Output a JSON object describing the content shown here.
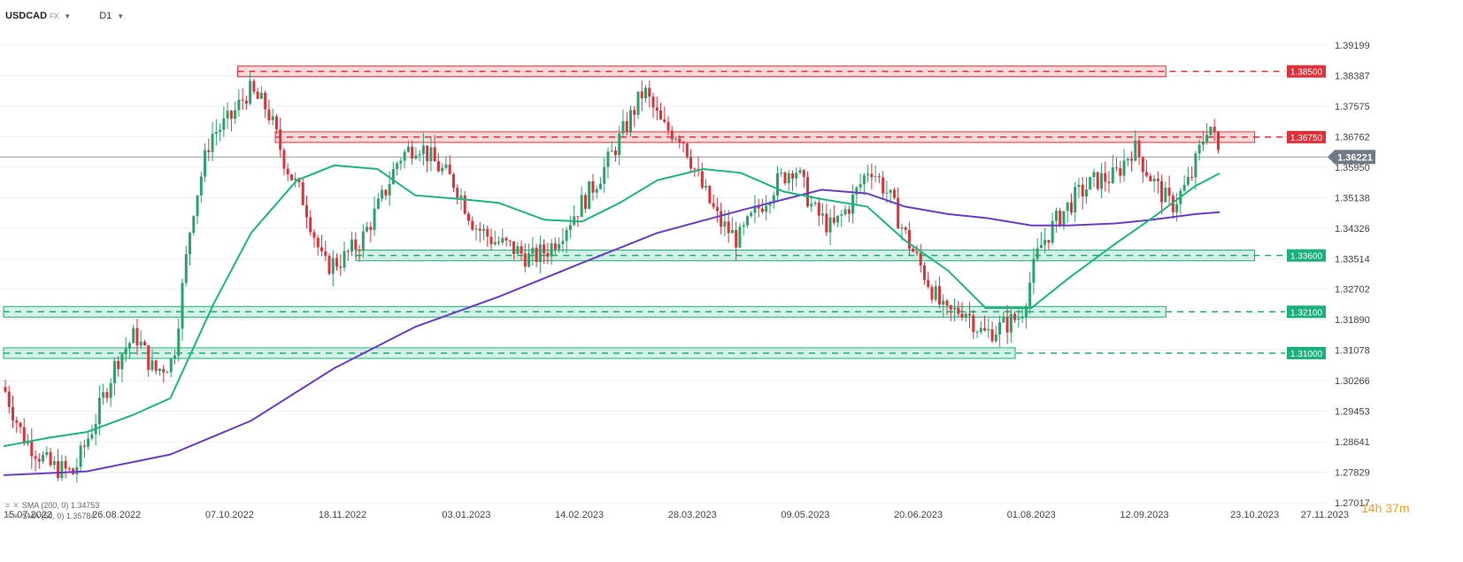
{
  "header": {
    "symbol": "USDCAD",
    "symbol_type": "FX",
    "timeframe": "D1",
    "caret_icon": "chevron-down-icon"
  },
  "timer": {
    "hours": "14h",
    "minutes": "37m"
  },
  "colors": {
    "bull": "#2aa36a",
    "bear": "#e0303a",
    "sma50": "#19b77d",
    "sma200": "#6a3cc8",
    "resistance": "#e0303a",
    "support": "#1ab07a",
    "grid": "#eeeeee",
    "axis_text": "#444444",
    "current_price_bg": "#6f7a86"
  },
  "indicators": [
    {
      "label": "SMA (200, 0) 1.34753",
      "color": "#6a3cc8"
    },
    {
      "label": "SMA (50, 0) 1.35784",
      "color": "#19b77d"
    }
  ],
  "chart_data": {
    "type": "candlestick",
    "instrument": "USDCAD",
    "timeframe": "D1",
    "x_tick_labels": [
      "15.07.2022",
      "26.08.2022",
      "07.10.2022",
      "18.11.2022",
      "03.01.2023",
      "14.02.2023",
      "28.03.2023",
      "09.05.2023",
      "20.06.2023",
      "01.08.2023",
      "12.09.2023",
      "23.10.2023",
      "27.11.2023"
    ],
    "x_range": [
      "15.07.2022",
      "27.11.2023"
    ],
    "y_tick_labels": [
      "1.39199",
      "1.38387",
      "1.37575",
      "1.36762",
      "1.35950",
      "1.35138",
      "1.34326",
      "1.33514",
      "1.32702",
      "1.31890",
      "1.31078",
      "1.30266",
      "1.29453",
      "1.28641",
      "1.27829",
      "1.27017"
    ],
    "ylim": [
      1.27017,
      1.39199
    ],
    "current_price": 1.36221,
    "levels": [
      {
        "value": "1.38500",
        "type": "resistance",
        "start": "10.10.2022",
        "end": "20.09.2023"
      },
      {
        "value": "1.36750",
        "type": "resistance",
        "start": "24.10.2022",
        "end": "23.10.2023"
      },
      {
        "value": "1.33600",
        "type": "support",
        "start": "23.11.2022",
        "end": "23.10.2023"
      },
      {
        "value": "1.32100",
        "type": "support",
        "start": "15.07.2022",
        "end": "20.09.2023"
      },
      {
        "value": "1.31000",
        "type": "support",
        "start": "15.07.2022",
        "end": "26.07.2023"
      }
    ],
    "sma50": {
      "name": "SMA (50, 0)",
      "last": 1.35784,
      "points": [
        [
          "15.07.2022",
          1.2852
        ],
        [
          "01.08.2022",
          1.2875
        ],
        [
          "15.08.2022",
          1.289
        ],
        [
          "01.09.2022",
          1.2935
        ],
        [
          "15.09.2022",
          1.298
        ],
        [
          "01.10.2022",
          1.323
        ],
        [
          "15.10.2022",
          1.342
        ],
        [
          "01.11.2022",
          1.356
        ],
        [
          "15.11.2022",
          1.36
        ],
        [
          "01.12.2022",
          1.359
        ],
        [
          "15.12.2022",
          1.352
        ],
        [
          "01.01.2023",
          1.351
        ],
        [
          "15.01.2023",
          1.35
        ],
        [
          "01.02.2023",
          1.3455
        ],
        [
          "15.02.2023",
          1.345
        ],
        [
          "01.03.2023",
          1.35
        ],
        [
          "15.03.2023",
          1.356
        ],
        [
          "01.04.2023",
          1.359
        ],
        [
          "15.04.2023",
          1.358
        ],
        [
          "01.05.2023",
          1.353
        ],
        [
          "15.05.2023",
          1.351
        ],
        [
          "01.06.2023",
          1.349
        ],
        [
          "15.06.2023",
          1.34
        ],
        [
          "01.07.2023",
          1.332
        ],
        [
          "15.07.2023",
          1.322
        ],
        [
          "01.08.2023",
          1.322
        ],
        [
          "15.08.2023",
          1.33
        ],
        [
          "01.09.2023",
          1.339
        ],
        [
          "15.09.2023",
          1.346
        ],
        [
          "01.10.2023",
          1.3545
        ],
        [
          "10.10.2023",
          1.35784
        ]
      ]
    },
    "sma200": {
      "name": "SMA (200, 0)",
      "last": 1.34753,
      "points": [
        [
          "15.07.2022",
          1.2775
        ],
        [
          "15.08.2022",
          1.2785
        ],
        [
          "15.09.2022",
          1.283
        ],
        [
          "15.10.2022",
          1.292
        ],
        [
          "15.11.2022",
          1.306
        ],
        [
          "15.12.2022",
          1.317
        ],
        [
          "15.01.2023",
          1.325
        ],
        [
          "15.02.2023",
          1.334
        ],
        [
          "15.03.2023",
          1.342
        ],
        [
          "15.04.2023",
          1.348
        ],
        [
          "15.05.2023",
          1.3535
        ],
        [
          "01.06.2023",
          1.3525
        ],
        [
          "15.06.2023",
          1.349
        ],
        [
          "01.07.2023",
          1.347
        ],
        [
          "15.07.2023",
          1.346
        ],
        [
          "01.08.2023",
          1.344
        ],
        [
          "15.08.2023",
          1.344
        ],
        [
          "01.09.2023",
          1.3445
        ],
        [
          "15.09.2023",
          1.3455
        ],
        [
          "01.10.2023",
          1.347
        ],
        [
          "10.10.2023",
          1.34753
        ]
      ]
    },
    "close_path": [
      [
        "15.07.2022",
        1.301
      ],
      [
        "22.07.2022",
        1.288
      ],
      [
        "01.08.2022",
        1.28
      ],
      [
        "10.08.2022",
        1.278
      ],
      [
        "18.08.2022",
        1.292
      ],
      [
        "26.08.2022",
        1.308
      ],
      [
        "02.09.2022",
        1.315
      ],
      [
        "09.09.2022",
        1.305
      ],
      [
        "16.09.2022",
        1.308
      ],
      [
        "23.09.2022",
        1.347
      ],
      [
        "30.09.2022",
        1.368
      ],
      [
        "07.10.2022",
        1.372
      ],
      [
        "14.10.2022",
        1.38
      ],
      [
        "21.10.2022",
        1.375
      ],
      [
        "28.10.2022",
        1.36
      ],
      [
        "04.11.2022",
        1.35
      ],
      [
        "11.11.2022",
        1.333
      ],
      [
        "18.11.2022",
        1.335
      ],
      [
        "25.11.2022",
        1.34
      ],
      [
        "02.12.2022",
        1.35
      ],
      [
        "09.12.2022",
        1.362
      ],
      [
        "16.12.2022",
        1.366
      ],
      [
        "23.12.2022",
        1.36
      ],
      [
        "30.12.2022",
        1.355
      ],
      [
        "06.01.2023",
        1.344
      ],
      [
        "13.01.2023",
        1.34
      ],
      [
        "20.01.2023",
        1.338
      ],
      [
        "27.01.2023",
        1.335
      ],
      [
        "03.02.2023",
        1.338
      ],
      [
        "10.02.2023",
        1.345
      ],
      [
        "17.02.2023",
        1.352
      ],
      [
        "24.02.2023",
        1.36
      ],
      [
        "03.03.2023",
        1.37
      ],
      [
        "10.03.2023",
        1.38
      ],
      [
        "17.03.2023",
        1.37
      ],
      [
        "24.03.2023",
        1.368
      ],
      [
        "31.03.2023",
        1.355
      ],
      [
        "07.04.2023",
        1.345
      ],
      [
        "14.04.2023",
        1.34
      ],
      [
        "21.04.2023",
        1.348
      ],
      [
        "28.04.2023",
        1.355
      ],
      [
        "05.05.2023",
        1.36
      ],
      [
        "12.05.2023",
        1.348
      ],
      [
        "19.05.2023",
        1.343
      ],
      [
        "26.05.2023",
        1.35
      ],
      [
        "02.06.2023",
        1.36
      ],
      [
        "09.06.2023",
        1.352
      ],
      [
        "16.06.2023",
        1.34
      ],
      [
        "23.06.2023",
        1.33
      ],
      [
        "30.06.2023",
        1.32
      ],
      [
        "07.07.2023",
        1.322
      ],
      [
        "14.07.2023",
        1.315
      ],
      [
        "21.07.2023",
        1.317
      ],
      [
        "28.07.2023",
        1.32
      ],
      [
        "04.08.2023",
        1.338
      ],
      [
        "11.08.2023",
        1.346
      ],
      [
        "18.08.2023",
        1.352
      ],
      [
        "25.08.2023",
        1.356
      ],
      [
        "01.09.2023",
        1.357
      ],
      [
        "08.09.2023",
        1.365
      ],
      [
        "15.09.2023",
        1.356
      ],
      [
        "22.09.2023",
        1.349
      ],
      [
        "29.09.2023",
        1.356
      ],
      [
        "06.10.2023",
        1.372
      ],
      [
        "10.10.2023",
        1.36221
      ]
    ]
  }
}
